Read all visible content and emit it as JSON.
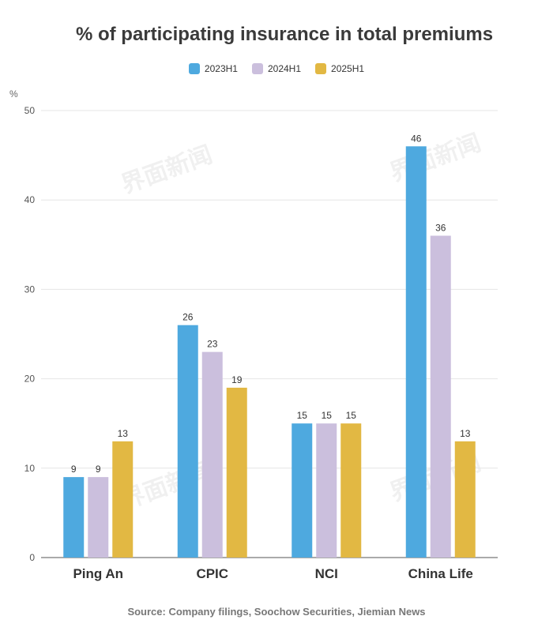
{
  "chart_data": {
    "type": "bar",
    "title": "% of participating insurance in total premiums",
    "unit": "%",
    "categories": [
      "Ping An",
      "CPIC",
      "NCI",
      "China Life"
    ],
    "series": [
      {
        "name": "2023H1",
        "color": "#4ea9df",
        "values": [
          9,
          26,
          15,
          46
        ]
      },
      {
        "name": "2024H1",
        "color": "#cbbfdd",
        "values": [
          9,
          23,
          15,
          36
        ]
      },
      {
        "name": "2025H1",
        "color": "#e2b843",
        "values": [
          13,
          19,
          15,
          13
        ]
      }
    ],
    "ylim": [
      0,
      50
    ],
    "yticks": [
      0,
      10,
      20,
      30,
      40,
      50
    ],
    "grid": true,
    "legend_position": "top-center",
    "source": "Source: Company filings, Soochow Securities, Jiemian News"
  },
  "watermark_text": "界面新闻"
}
